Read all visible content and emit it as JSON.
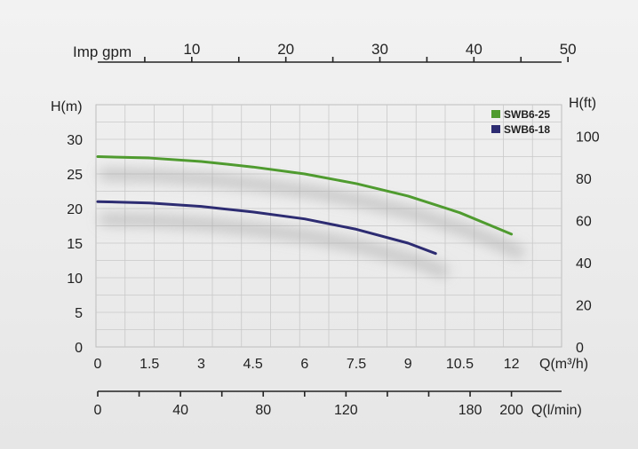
{
  "chart_data": {
    "type": "line",
    "primary_x": {
      "label": "Q(m³/h)",
      "ticks": [
        "0",
        "1.5",
        "3",
        "4.5",
        "6",
        "7.5",
        "9",
        "10.5",
        "12"
      ],
      "range": [
        0,
        13
      ]
    },
    "primary_y": {
      "label": "H(m)",
      "ticks": [
        "0",
        "5",
        "10",
        "15",
        "20",
        "25",
        "30"
      ],
      "range": [
        0,
        35
      ]
    },
    "secondary_y": {
      "label": "H(ft)",
      "ticks": [
        "0",
        "20",
        "40",
        "60",
        "80",
        "100"
      ]
    },
    "top_x": {
      "label": "Imp gpm",
      "ticks": [
        "10",
        "20",
        "30",
        "40",
        "50"
      ]
    },
    "bottom_x": {
      "label": "Q(l/min)",
      "ticks": [
        "0",
        "40",
        "80",
        "120",
        "180",
        "200"
      ]
    },
    "grid": true,
    "legend_position": "top-right",
    "series": [
      {
        "name": "SWB6-25",
        "color": "#4f9b2f",
        "points": [
          [
            0,
            27.5
          ],
          [
            1.5,
            27.3
          ],
          [
            3,
            26.8
          ],
          [
            4.5,
            26.0
          ],
          [
            6,
            25.0
          ],
          [
            7.5,
            23.6
          ],
          [
            9,
            21.8
          ],
          [
            10.5,
            19.4
          ],
          [
            12,
            16.3
          ]
        ]
      },
      {
        "name": "SWB6-18",
        "color": "#2d2b72",
        "points": [
          [
            0,
            21.0
          ],
          [
            1.5,
            20.8
          ],
          [
            3,
            20.3
          ],
          [
            4.5,
            19.5
          ],
          [
            6,
            18.5
          ],
          [
            7.5,
            17.0
          ],
          [
            9,
            15.0
          ],
          [
            9.8,
            13.5
          ]
        ]
      }
    ]
  }
}
